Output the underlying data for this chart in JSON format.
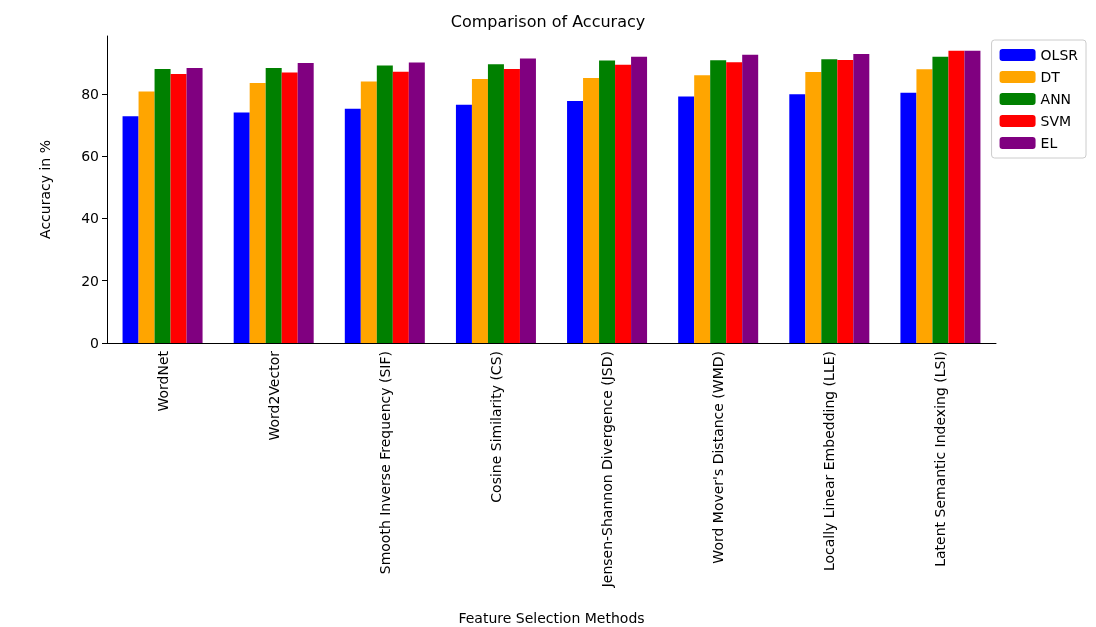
{
  "chart_data": {
    "type": "bar",
    "title": "Comparison of Accuracy",
    "xlabel": "Feature Selection Methods",
    "ylabel": "Accuracy in %",
    "categories": [
      "WordNet",
      "Word2Vector",
      "Smooth Inverse Frequency (SIF)",
      "Cosine Similarity (CS)",
      "Jensen-Shannon Divergence (JSD)",
      "Word Mover's Distance (WMD)",
      "Locally Linear Embedding (LLE)",
      "Latent Semantic Indexing (LSI)"
    ],
    "series": [
      {
        "name": "OLSR",
        "color": "#0000ff",
        "values": [
          72.8,
          74.0,
          75.2,
          76.5,
          77.7,
          79.2,
          79.9,
          80.4
        ]
      },
      {
        "name": "DT",
        "color": "#ffa500",
        "values": [
          80.8,
          83.5,
          84.0,
          84.8,
          85.1,
          86.0,
          87.0,
          87.9
        ]
      },
      {
        "name": "ANN",
        "color": "#008000",
        "values": [
          88.0,
          88.3,
          89.1,
          89.5,
          90.7,
          90.8,
          91.1,
          91.9
        ]
      },
      {
        "name": "SVM",
        "color": "#ff0000",
        "values": [
          86.4,
          86.9,
          87.1,
          88.0,
          89.4,
          90.2,
          90.9,
          93.9
        ]
      },
      {
        "name": "EL",
        "color": "#800080",
        "values": [
          88.3,
          89.9,
          90.1,
          91.4,
          91.9,
          92.6,
          92.8,
          93.9
        ]
      }
    ],
    "ylim": [
      0,
      98.6
    ],
    "yticks": [
      0,
      20,
      40,
      60,
      80
    ],
    "grid": false,
    "legend": "right"
  }
}
